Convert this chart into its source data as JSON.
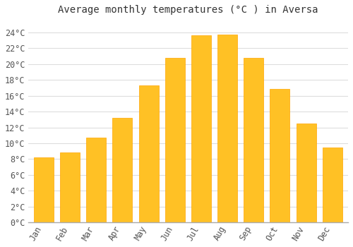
{
  "title": "Average monthly temperatures (°C ) in Aversa",
  "months": [
    "Jan",
    "Feb",
    "Mar",
    "Apr",
    "May",
    "Jun",
    "Jul",
    "Aug",
    "Sep",
    "Oct",
    "Nov",
    "Dec"
  ],
  "values": [
    8.2,
    8.8,
    10.7,
    13.2,
    17.3,
    20.8,
    23.6,
    23.7,
    20.8,
    16.9,
    12.5,
    9.5
  ],
  "bar_color": "#FFC125",
  "bar_edge_color": "#FFA500",
  "background_color": "#FFFFFF",
  "grid_color": "#DDDDDD",
  "ytick_labels": [
    "0°C",
    "2°C",
    "4°C",
    "6°C",
    "8°C",
    "10°C",
    "12°C",
    "14°C",
    "16°C",
    "18°C",
    "20°C",
    "22°C",
    "24°C"
  ],
  "ytick_values": [
    0,
    2,
    4,
    6,
    8,
    10,
    12,
    14,
    16,
    18,
    20,
    22,
    24
  ],
  "ylim": [
    0,
    25.5
  ],
  "title_fontsize": 10,
  "tick_fontsize": 8.5
}
